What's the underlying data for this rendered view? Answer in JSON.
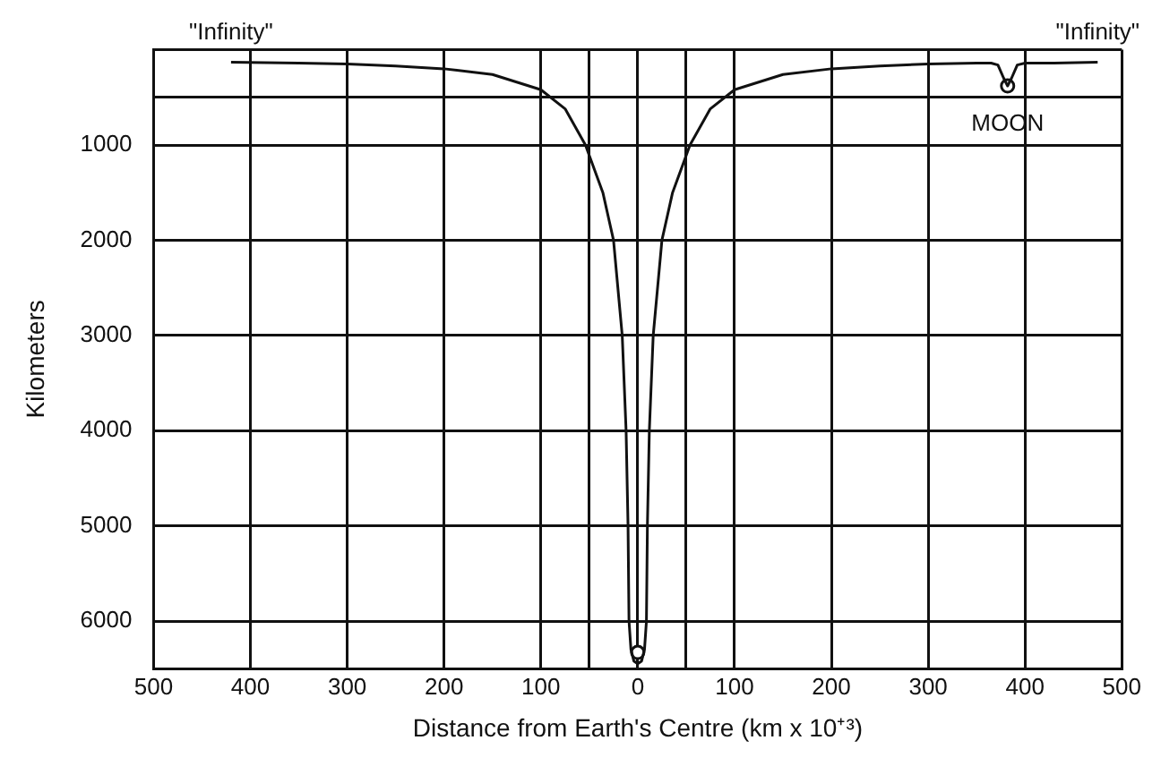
{
  "chart_data": {
    "type": "line",
    "xlabel": "Distance from Earth's Centre (km x 10⁺³)",
    "ylabel": "Kilometers",
    "xlim": [
      -500,
      500
    ],
    "ylim": [
      6500,
      0
    ],
    "xticks": [
      {
        "value": -500,
        "label": "500"
      },
      {
        "value": -400,
        "label": "400"
      },
      {
        "value": -300,
        "label": "300"
      },
      {
        "value": -200,
        "label": "200"
      },
      {
        "value": -100,
        "label": "100"
      },
      {
        "value": -50,
        "label": null
      },
      0,
      {
        "value": 50,
        "label": null
      },
      100,
      200,
      300,
      400,
      500
    ],
    "yticks": [
      {
        "value": 0,
        "label": null
      },
      {
        "value": 500,
        "label": null
      },
      1000,
      2000,
      3000,
      4000,
      5000,
      6000
    ],
    "grid": true,
    "legend": false,
    "marker": "none",
    "line_style": "solid",
    "series": [
      {
        "color": "#111111",
        "x": [
          -420,
          -350,
          -300,
          -250,
          -200,
          -150,
          -100,
          -75,
          -54,
          -36,
          -25,
          -16,
          -12,
          -10,
          -9,
          -7,
          -4,
          0,
          4,
          7,
          9,
          10,
          12,
          16,
          25,
          36,
          54,
          75,
          100,
          150,
          200,
          250,
          300,
          350,
          365,
          372,
          378,
          382,
          386,
          392,
          400,
          430,
          475
        ],
        "values": [
          130,
          140,
          150,
          170,
          200,
          260,
          420,
          620,
          1000,
          1500,
          2000,
          3000,
          4000,
          5000,
          6000,
          6300,
          6420,
          6450,
          6420,
          6300,
          6000,
          5000,
          4000,
          3000,
          2000,
          1500,
          1000,
          620,
          420,
          260,
          200,
          170,
          150,
          140,
          140,
          160,
          300,
          380,
          300,
          160,
          140,
          140,
          130
        ]
      },
      {
        "type": "scatter",
        "color": "#111111",
        "marker": "circle",
        "x": [
          0,
          382
        ],
        "values": [
          6330,
          380
        ]
      }
    ],
    "annotations": [
      "\"Infinity\"",
      "\"Infinity\"",
      "MOON"
    ]
  }
}
